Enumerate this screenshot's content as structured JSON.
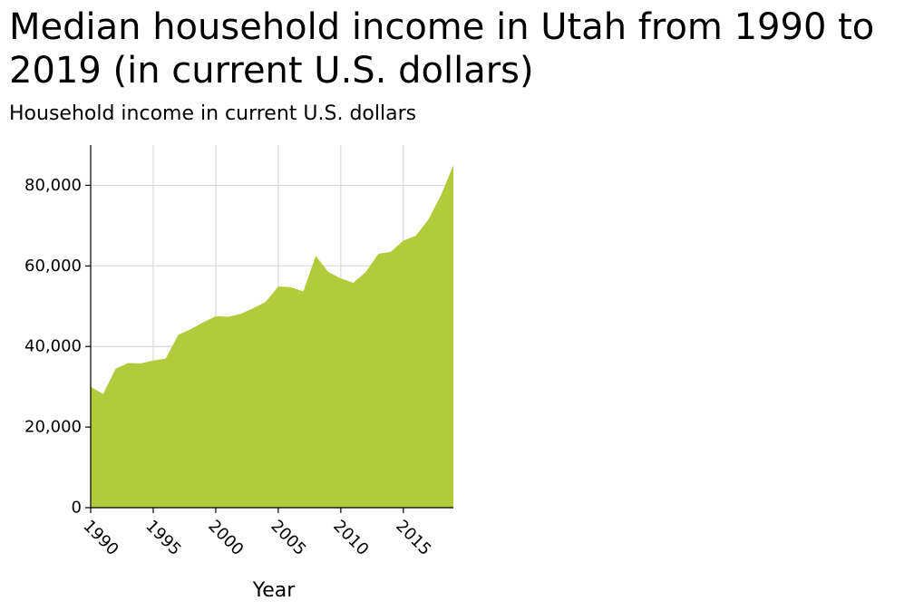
{
  "chart_data": {
    "type": "area",
    "title": "Median household income in Utah from 1990 to 2019 (in current U.S. dollars)",
    "xlabel": "Year",
    "ylabel": "Household income in current U.S. dollars",
    "x": [
      1990,
      1991,
      1992,
      1993,
      1994,
      1995,
      1996,
      1997,
      1998,
      1999,
      2000,
      2001,
      2002,
      2003,
      2004,
      2005,
      2006,
      2007,
      2008,
      2009,
      2010,
      2011,
      2012,
      2013,
      2014,
      2015,
      2016,
      2017,
      2018,
      2019
    ],
    "series": [
      {
        "values": [
          30000,
          28200,
          34500,
          35900,
          35800,
          36500,
          37000,
          42900,
          44300,
          46000,
          47500,
          47400,
          48100,
          49500,
          51100,
          54900,
          54700,
          53700,
          62500,
          58500,
          56900,
          55800,
          58500,
          63000,
          63500,
          66300,
          67500,
          71500,
          77500,
          85000
        ]
      }
    ],
    "xlim": [
      1990,
      2019
    ],
    "ylim": [
      0,
      90000
    ],
    "x_ticks": [
      1990,
      1995,
      2000,
      2005,
      2010,
      2015
    ],
    "x_tick_labels": [
      "1990",
      "1995",
      "2000",
      "2005",
      "2010",
      "2015"
    ],
    "y_ticks": [
      0,
      20000,
      40000,
      60000,
      80000
    ],
    "y_tick_labels": [
      "0",
      "20,000",
      "40,000",
      "60,000",
      "80,000"
    ],
    "grid": true,
    "legend": "none",
    "colors": {
      "area": "#b2cb3c",
      "grid": "#d9d9d9",
      "axis": "#000000"
    }
  }
}
